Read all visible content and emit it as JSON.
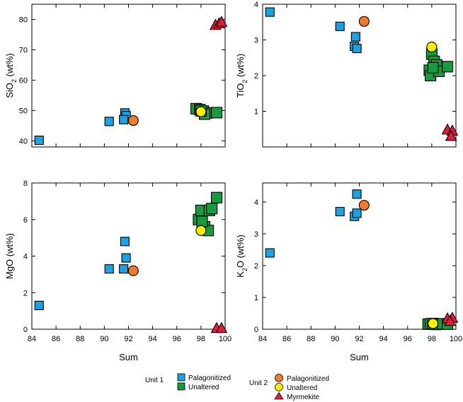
{
  "colors": {
    "u1_palag": "#1fa0e0",
    "u1_unalt": "#1a9a3e",
    "u2_palag": "#f07a30",
    "u2_unalt": "#ffee00",
    "myrmekite": "#e01e3c"
  },
  "legend": {
    "unit1_label": "Unit 1",
    "unit2_label": "Unit 2",
    "u1_palag": "Palagonitized",
    "u1_unalt": "Unaltered",
    "u2_palag": "Palagonitized",
    "u2_unalt": "Unaltered",
    "myrmekite": "Myrmekite"
  },
  "chart_data": [
    {
      "type": "scatter",
      "id": "sio2",
      "ylabel_main": "SiO",
      "ylabel_sub": "2",
      "ylabel_tail": " (wt%)",
      "xlabel": "",
      "xlim": [
        84,
        100
      ],
      "ylim": [
        38,
        85
      ],
      "xticks": [
        84,
        86,
        88,
        90,
        92,
        94,
        96,
        98,
        100
      ],
      "yticks": [
        40,
        50,
        60,
        70,
        80
      ],
      "show_xticklabels": false,
      "series": {
        "u1_palag": [
          [
            84.6,
            40.2
          ],
          [
            90.4,
            46.4
          ],
          [
            91.7,
            49.2
          ],
          [
            91.8,
            48.3
          ],
          [
            91.6,
            47.0
          ]
        ],
        "u1_unalt": [
          [
            97.6,
            50.6
          ],
          [
            97.9,
            50.3
          ],
          [
            98.2,
            49.8
          ],
          [
            98.5,
            49.2
          ],
          [
            98.3,
            48.8
          ],
          [
            99.3,
            49.3
          ],
          [
            98.0,
            49.9
          ]
        ],
        "u2_palag": [
          [
            92.4,
            46.7
          ]
        ],
        "u2_unalt": [
          [
            98.0,
            49.6
          ]
        ],
        "myrmekite": [
          [
            99.2,
            78.1
          ],
          [
            99.5,
            78.6
          ],
          [
            99.7,
            79.1
          ]
        ]
      }
    },
    {
      "type": "scatter",
      "id": "tio2",
      "ylabel_main": "TiO",
      "ylabel_sub": "2",
      "ylabel_tail": " (wt%)",
      "xlabel": "",
      "xlim": [
        84,
        100
      ],
      "ylim": [
        0,
        4
      ],
      "xticks": [
        84,
        86,
        88,
        90,
        92,
        94,
        96,
        98,
        100
      ],
      "yticks": [
        1,
        2,
        3,
        4
      ],
      "show_xticklabels": false,
      "series": {
        "u1_palag": [
          [
            84.6,
            3.78
          ],
          [
            90.4,
            3.38
          ],
          [
            91.7,
            3.09
          ],
          [
            91.6,
            2.82
          ],
          [
            91.8,
            2.76
          ]
        ],
        "u1_unalt": [
          [
            97.8,
            2.15
          ],
          [
            97.9,
            2.0
          ],
          [
            98.0,
            2.6
          ],
          [
            98.2,
            2.4
          ],
          [
            98.4,
            2.3
          ],
          [
            98.6,
            2.12
          ],
          [
            99.3,
            2.25
          ],
          [
            98.1,
            2.22
          ]
        ],
        "u2_palag": [
          [
            92.4,
            3.52
          ]
        ],
        "u2_unalt": [
          [
            98.0,
            2.8
          ]
        ],
        "myrmekite": [
          [
            99.3,
            0.48
          ],
          [
            99.7,
            0.45
          ],
          [
            99.6,
            0.3
          ]
        ]
      }
    },
    {
      "type": "scatter",
      "id": "mgo",
      "ylabel_main": "MgO (wt%)",
      "ylabel_sub": "",
      "ylabel_tail": "",
      "xlabel": "Sum",
      "xlim": [
        84,
        100
      ],
      "ylim": [
        0,
        8
      ],
      "xticks": [
        84,
        86,
        88,
        90,
        92,
        94,
        96,
        98,
        100
      ],
      "yticks": [
        0,
        2,
        4,
        6,
        8
      ],
      "show_xticklabels": true,
      "series": {
        "u1_palag": [
          [
            84.6,
            1.3
          ],
          [
            90.4,
            3.3
          ],
          [
            91.6,
            3.3
          ],
          [
            91.8,
            3.9
          ],
          [
            91.7,
            4.8
          ]
        ],
        "u1_unalt": [
          [
            97.8,
            6.0
          ],
          [
            98.0,
            6.5
          ],
          [
            98.3,
            5.6
          ],
          [
            98.7,
            6.5
          ],
          [
            98.9,
            6.6
          ],
          [
            98.6,
            5.4
          ],
          [
            99.3,
            7.2
          ],
          [
            98.1,
            5.9
          ]
        ],
        "u2_palag": [
          [
            92.4,
            3.2
          ]
        ],
        "u2_unalt": [
          [
            98.0,
            5.4
          ]
        ],
        "myrmekite": [
          [
            99.3,
            0.05
          ],
          [
            99.7,
            0.05
          ]
        ]
      }
    },
    {
      "type": "scatter",
      "id": "k2o",
      "ylabel_main": "K",
      "ylabel_sub": "2",
      "ylabel_tail": "O (wt%)",
      "xlabel": "Sum",
      "xlim": [
        84,
        100
      ],
      "ylim": [
        0,
        4.6
      ],
      "xticks": [
        84,
        86,
        88,
        90,
        92,
        94,
        96,
        98,
        100
      ],
      "yticks": [
        0,
        1,
        2,
        3,
        4
      ],
      "show_xticklabels": true,
      "series": {
        "u1_palag": [
          [
            84.6,
            2.4
          ],
          [
            90.4,
            3.7
          ],
          [
            91.6,
            3.55
          ],
          [
            91.8,
            3.65
          ],
          [
            91.8,
            4.25
          ]
        ],
        "u1_unalt": [
          [
            97.7,
            0.16
          ],
          [
            97.9,
            0.17
          ],
          [
            98.1,
            0.18
          ],
          [
            98.3,
            0.15
          ],
          [
            98.6,
            0.16
          ],
          [
            98.9,
            0.17
          ],
          [
            99.3,
            0.16
          ]
        ],
        "u2_palag": [
          [
            92.4,
            3.9
          ]
        ],
        "u2_unalt": [
          [
            98.1,
            0.18
          ]
        ],
        "myrmekite": [
          [
            99.3,
            0.33
          ],
          [
            99.7,
            0.35
          ],
          [
            99.5,
            0.25
          ]
        ]
      }
    }
  ]
}
